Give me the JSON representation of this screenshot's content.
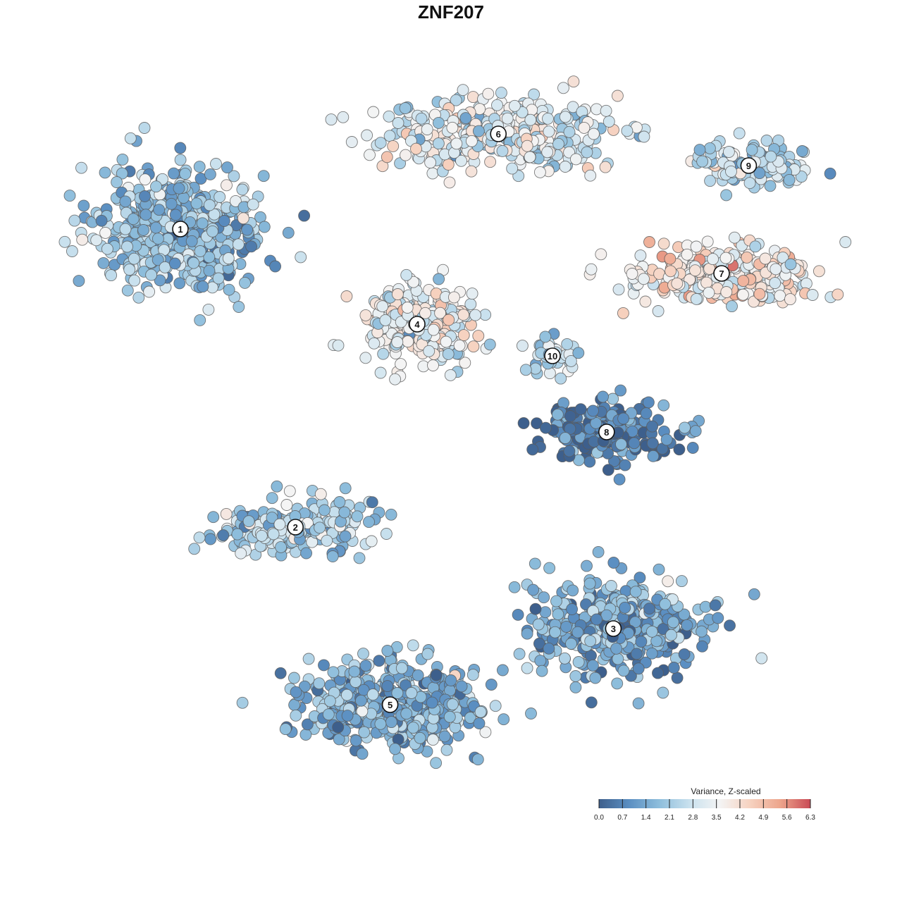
{
  "chart_data": {
    "type": "scatter",
    "title": "ZNF207",
    "xlabel": "",
    "ylabel": "",
    "grid": false,
    "legend": {
      "title": "Variance, Z-scaled",
      "placement": "bottom-right",
      "ticks": [
        "0.0",
        "0.7",
        "1.4",
        "2.1",
        "2.8",
        "3.5",
        "4.2",
        "4.9",
        "5.6",
        "6.3"
      ],
      "range": [
        0,
        6.3
      ],
      "colors": [
        "#3d5f8c",
        "#5b8fc2",
        "#8ebedc",
        "#c9e1ee",
        "#f4f4f4",
        "#f6d2c0",
        "#eda58c",
        "#c94a55"
      ]
    },
    "x_range": [
      -50,
      50
    ],
    "y_range": [
      -50,
      50
    ],
    "clusters": [
      {
        "label": "1",
        "x": -40,
        "y": 35,
        "value_mean": 1.9,
        "spread": [
          11,
          9
        ],
        "n": 520
      },
      {
        "label": "2",
        "x": -23,
        "y": -12,
        "value_mean": 2.2,
        "spread": [
          10,
          4
        ],
        "n": 220
      },
      {
        "label": "3",
        "x": 24,
        "y": -28,
        "value_mean": 1.5,
        "spread": [
          12,
          7
        ],
        "n": 420
      },
      {
        "label": "4",
        "x": -5,
        "y": 20,
        "value_mean": 3.3,
        "spread": [
          7,
          6
        ],
        "n": 300
      },
      {
        "label": "5",
        "x": -9,
        "y": -40,
        "value_mean": 1.6,
        "spread": [
          12,
          6
        ],
        "n": 500
      },
      {
        "label": "6",
        "x": 7,
        "y": 50,
        "value_mean": 3.1,
        "spread": [
          16,
          5
        ],
        "n": 360
      },
      {
        "label": "7",
        "x": 40,
        "y": 28,
        "value_mean": 3.9,
        "spread": [
          13,
          4
        ],
        "n": 260
      },
      {
        "label": "8",
        "x": 23,
        "y": 3,
        "value_mean": 0.6,
        "spread": [
          9,
          4
        ],
        "n": 220
      },
      {
        "label": "9",
        "x": 44,
        "y": 45,
        "value_mean": 2.6,
        "spread": [
          7,
          3
        ],
        "n": 130
      },
      {
        "label": "10",
        "x": 15,
        "y": 15,
        "value_mean": 2.6,
        "spread": [
          3,
          3
        ],
        "n": 40
      }
    ]
  }
}
